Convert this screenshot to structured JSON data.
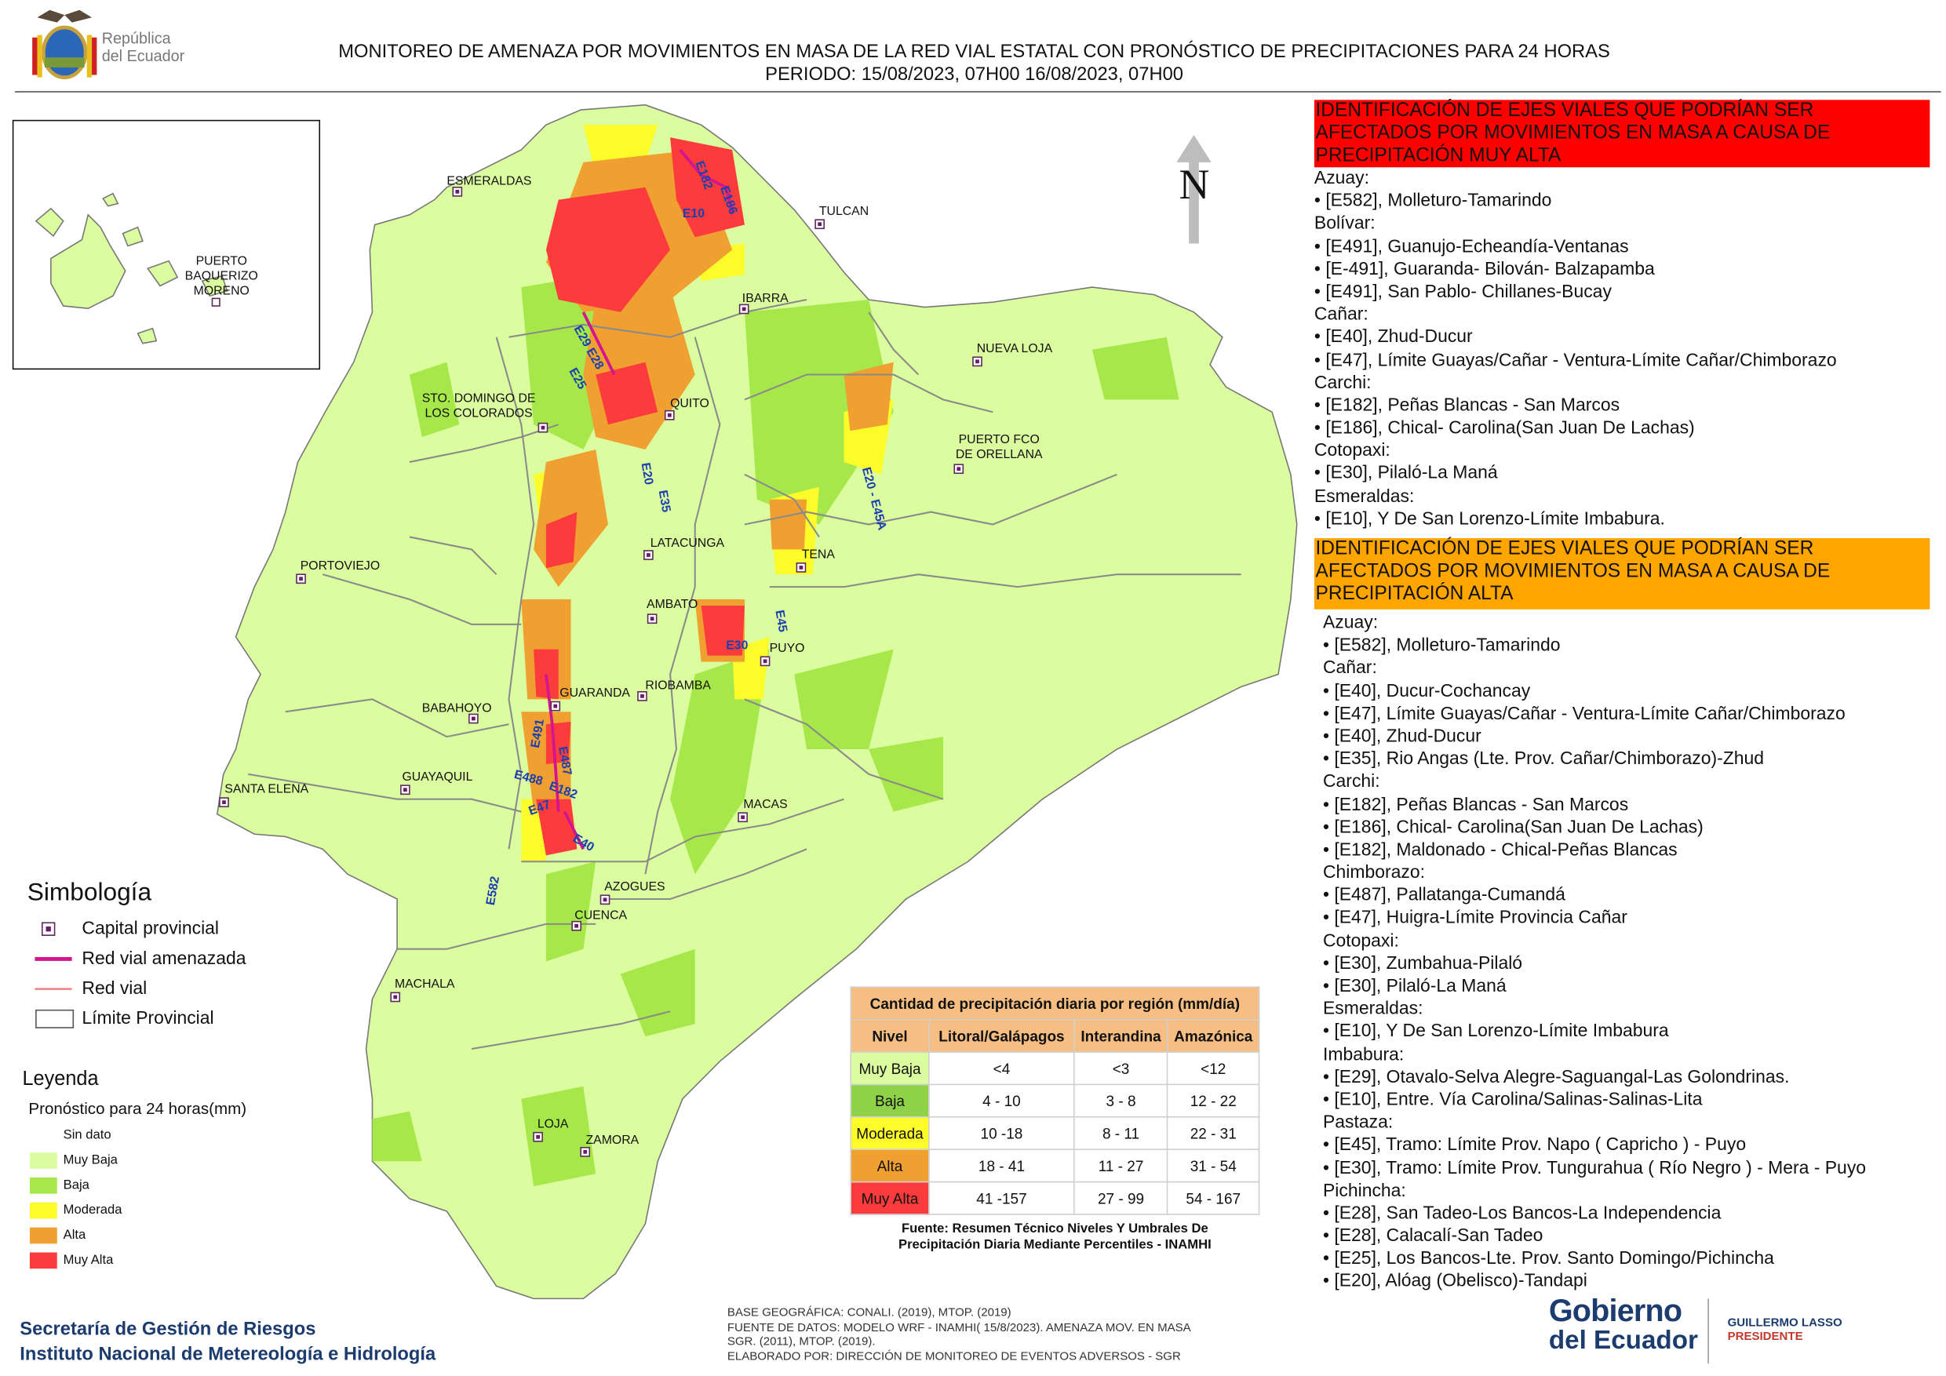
{
  "header": {
    "logo_text_line1": "República",
    "logo_text_line2": "del Ecuador",
    "title_line1": "MONITOREO DE AMENAZA POR MOVIMIENTOS EN MASA DE LA RED VIAL  ESTATAL  CON PRONÓSTICO  DE  PRECIPITACIONES PARA 24 HORAS",
    "title_line2": "PERIODO: 15/08/2023, 07H00 16/08/2023, 07H00"
  },
  "map": {
    "north_label": "N",
    "inset_labels": [
      "PUERTO",
      "BAQUERIZO",
      "MORENO"
    ],
    "cities": [
      "ESMERALDAS",
      "TULCAN",
      "IBARRA",
      "NUEVA LOJA",
      "STO. DOMINGO DE",
      "LOS COLORADOS",
      "QUITO",
      "PUERTO FCO",
      "DE ORELLANA",
      "PORTOVIEJO",
      "LATACUNGA",
      "TENA",
      "AMBATO",
      "PUYO",
      "GUARANDA",
      "RIOBAMBA",
      "BABAHOYO",
      "SANTA ELENA",
      "GUAYAQUIL",
      "MACAS",
      "AZOGUES",
      "CUENCA",
      "MACHALA",
      "LOJA",
      "ZAMORA"
    ],
    "roads": [
      "E182",
      "E186",
      "E10",
      "E29",
      "E28",
      "E25",
      "E20",
      "E35",
      "E20 - E45A",
      "E45",
      "E30",
      "E491",
      "E487",
      "E488",
      "E182",
      "E47",
      "E40",
      "E582"
    ]
  },
  "symbology": {
    "title": "Simbología",
    "items": [
      "Capital provincial",
      "Red vial amenazada",
      "Red vial",
      "Límite Provincial"
    ]
  },
  "legend": {
    "title": "Leyenda",
    "subtitle": "Pronóstico para 24 horas(mm)",
    "items": [
      {
        "label": "Sin dato",
        "color": "#ffffff"
      },
      {
        "label": "Muy Baja",
        "color": "#dbfc9f"
      },
      {
        "label": "Baja",
        "color": "#a6e84a"
      },
      {
        "label": "Moderada",
        "color": "#fcfc2a"
      },
      {
        "label": "Alta",
        "color": "#f0a030"
      },
      {
        "label": "Muy Alta",
        "color": "#fc3c3c"
      }
    ]
  },
  "precip_table": {
    "title": "Cantidad de precipitación diaria por región (mm/día)",
    "headers": [
      "Nivel",
      "Litoral/Galápagos",
      "Interandina",
      "Amazónica"
    ],
    "rows": [
      {
        "nivel": "Muy Baja",
        "color": "#dbfc9f",
        "litoral": "<4",
        "interandina": "<3",
        "amazonica": "<12"
      },
      {
        "nivel": "Baja",
        "color": "#8fd24a",
        "litoral": "4 - 10",
        "interandina": "3 - 8",
        "amazonica": "12 - 22"
      },
      {
        "nivel": "Moderada",
        "color": "#fcfc2a",
        "litoral": "10 -18",
        "interandina": "8 - 11",
        "amazonica": "22 - 31"
      },
      {
        "nivel": "Alta",
        "color": "#f0a030",
        "litoral": "18 - 41",
        "interandina": "11 - 27",
        "amazonica": "31 - 54"
      },
      {
        "nivel": "Muy Alta",
        "color": "#fc3c3c",
        "litoral": "41 -157",
        "interandina": "27 - 99",
        "amazonica": "54 - 167"
      }
    ],
    "source_line1": "Fuente: Resumen Técnico Niveles Y Umbrales De",
    "source_line2": "Precipitación Diaria Mediante Percentiles - INAMHI"
  },
  "muy_alta_box": {
    "heading_line1": "IDENTIFICACIÓN DE EJES VIALES QUE PODRÍAN SER",
    "heading_line2": "AFECTADOS POR MOVIMIENTOS EN MASA A CAUSA DE",
    "heading_line3": "PRECIPITACIÓN MUY ALTA",
    "heading_color": "#ff0000",
    "lines": [
      "Azuay:",
      "• [E582], Molleturo-Tamarindo",
      "Bolívar:",
      "• [E491], Guanujo-Echeandía-Ventanas",
      "• [E-491], Guaranda- Bilován- Balzapamba",
      "• [E491], San Pablo- Chillanes-Bucay",
      "Cañar:",
      "• [E40], Zhud-Ducur",
      "• [E47], Límite Guayas/Cañar - Ventura-Límite Cañar/Chimborazo",
      "Carchi:",
      "• [E182], Peñas Blancas - San Marcos",
      "• [E186], Chical- Carolina(San Juan De Lachas)",
      "Cotopaxi:",
      "• [E30], Pilaló-La Maná",
      "Esmeraldas:",
      "• [E10], Y De San Lorenzo-Límite Imbabura."
    ]
  },
  "alta_box": {
    "heading_line1": "IDENTIFICACIÓN DE EJES VIALES QUE PODRÍAN SER",
    "heading_line2": "AFECTADOS POR MOVIMIENTOS EN MASA A CAUSA DE",
    "heading_line3": "PRECIPITACIÓN  ALTA",
    "heading_color": "#ffa500",
    "lines": [
      "Azuay:",
      "• [E582], Molleturo-Tamarindo",
      "Cañar:",
      "• [E40], Ducur-Cochancay",
      "• [E47], Límite Guayas/Cañar - Ventura-Límite Cañar/Chimborazo",
      "• [E40], Zhud-Ducur",
      "• [E35], Rio Angas (Lte. Prov. Cañar/Chimborazo)-Zhud",
      "Carchi:",
      "• [E182], Peñas Blancas - San Marcos",
      "• [E186], Chical- Carolina(San Juan De Lachas)",
      "• [E182], Maldonado - Chical-Peñas Blancas",
      "Chimborazo:",
      "• [E487], Pallatanga-Cumandá",
      "• [E47], Huigra-Límite Provincia Cañar",
      "Cotopaxi:",
      "• [E30], Zumbahua-Pilaló",
      "• [E30], Pilaló-La Maná",
      "Esmeraldas:",
      "• [E10], Y De San Lorenzo-Límite Imbabura",
      "Imbabura:",
      "• [E29], Otavalo-Selva Alegre-Saguangal-Las Golondrinas.",
      "• [E10], Entre. Vía Carolina/Salinas-Salinas-Lita",
      "Pastaza:",
      "• [E45], Tramo: Límite Prov. Napo ( Capricho ) - Puyo",
      "• [E30], Tramo: Límite Prov. Tungurahua ( Río Negro ) - Mera - Puyo",
      "Pichincha:",
      "• [E28], San Tadeo-Los Bancos-La Independencia",
      "• [E28], Calacalí-San Tadeo",
      "• [E25], Los Bancos-Lte. Prov. Santo Domingo/Pichincha",
      "• [E20], Alóag (Obelisco)-Tandapi"
    ]
  },
  "footer": {
    "org_line1": "Secretaría de Gestión de Riesgos",
    "org_line2": "Instituto Nacional de Metereología e Hidrología",
    "credits": [
      "BASE GEOGRÁFICA: CONALI. (2019), MTOP. (2019)",
      "FUENTE DE DATOS: MODELO WRF - INAMHI( 15/8/2023).  AMENAZA MOV. EN MASA",
      "SGR. (2011), MTOP. (2019).",
      "ELABORADO POR: DIRECCIÓN DE MONITOREO DE EVENTOS ADVERSOS - SGR"
    ],
    "gov_line1": "Gobierno",
    "gov_line2": "del Ecuador",
    "president_name": "GUILLERMO LASSO",
    "president_title": "PRESIDENTE"
  }
}
